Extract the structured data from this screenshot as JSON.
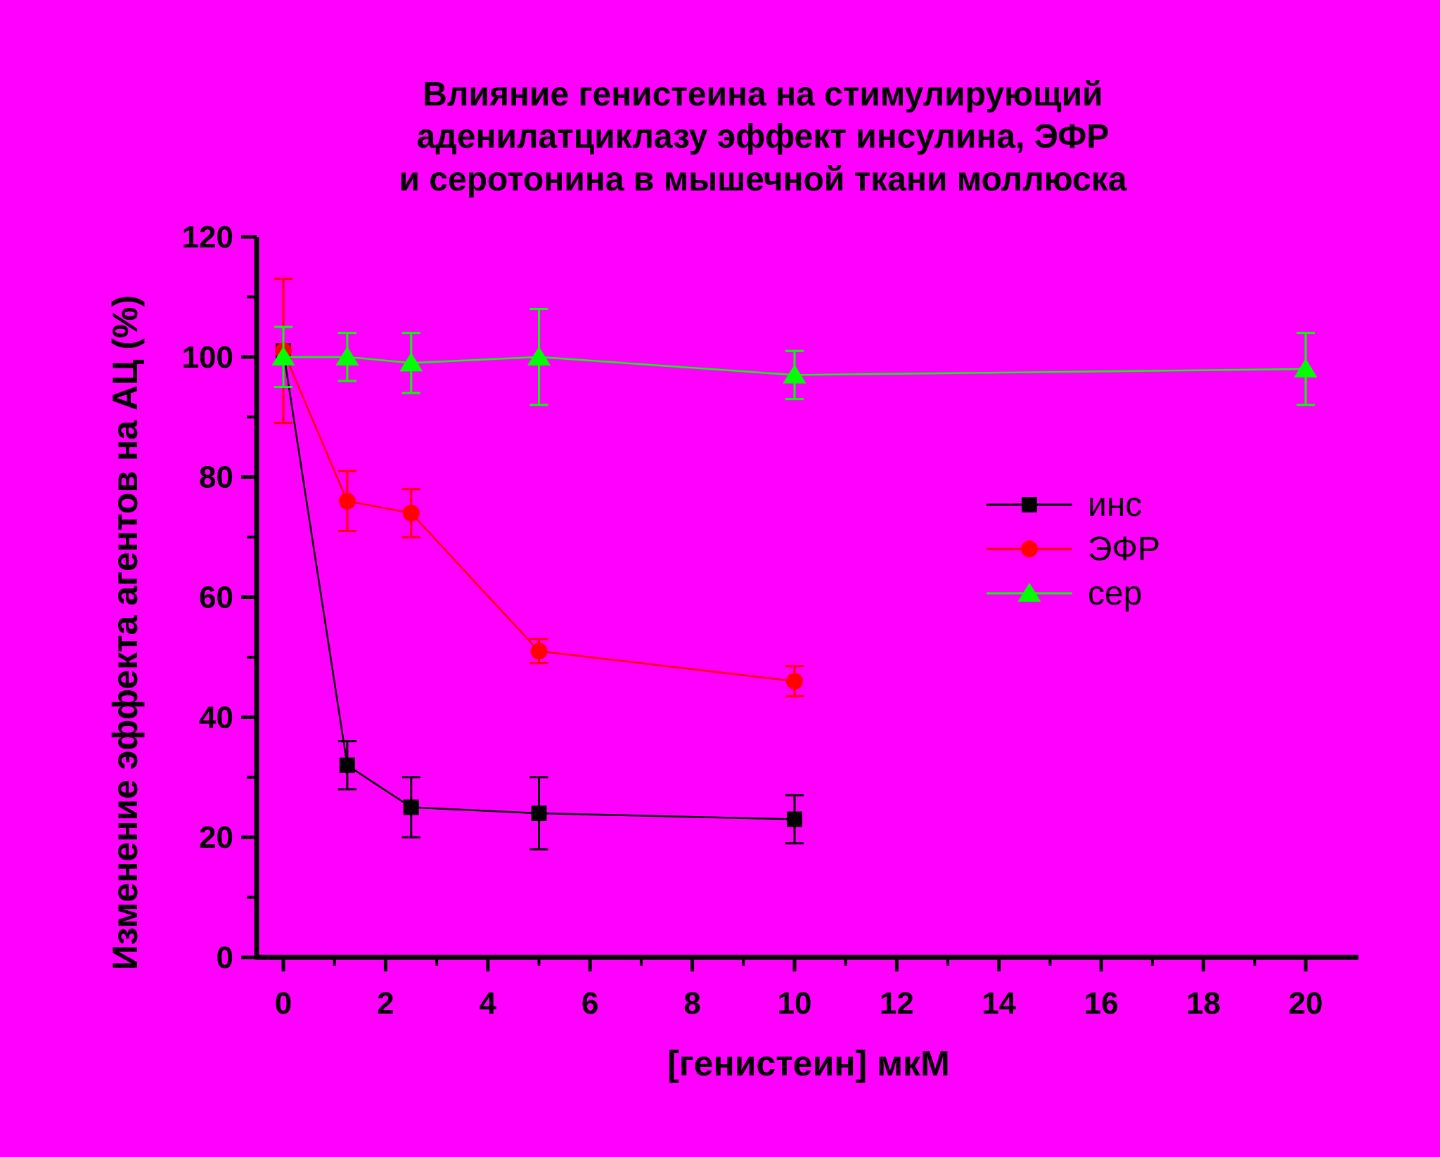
{
  "chart_data": {
    "type": "line",
    "title": [
      "Влияние генистеина на стимулирующий",
      "аденилатциклазу эффект инсулина, ЭФР",
      "и серотонина в мышечной ткани моллюска"
    ],
    "xlabel": "[генистеин] мкМ",
    "ylabel": "Изменение эффекта агентов на АЦ (%)",
    "xlim": [
      -0.5,
      21
    ],
    "ylim": [
      0,
      120
    ],
    "x_ticks": [
      0,
      2,
      4,
      6,
      8,
      10,
      12,
      14,
      16,
      18,
      20
    ],
    "y_ticks": [
      0,
      20,
      40,
      60,
      80,
      100,
      120
    ],
    "grid": false,
    "legend_position": "right-middle",
    "series": [
      {
        "name": "инс",
        "color": "#000000",
        "marker": "square",
        "x": [
          0,
          1.25,
          2.5,
          5,
          10
        ],
        "y": [
          101,
          32,
          25,
          24,
          23
        ],
        "err": [
          0,
          4,
          5,
          6,
          4
        ]
      },
      {
        "name": "ЭФР",
        "color": "#ff0000",
        "marker": "circle",
        "x": [
          0,
          1.25,
          2.5,
          5,
          10
        ],
        "y": [
          101,
          76,
          74,
          51,
          46
        ],
        "err": [
          12,
          5,
          4,
          2,
          2.5
        ]
      },
      {
        "name": "сер",
        "color": "#00ff00",
        "marker": "triangle",
        "x": [
          0,
          1.25,
          2.5,
          5,
          10,
          20
        ],
        "y": [
          100,
          100,
          99,
          100,
          97,
          98
        ],
        "err": [
          5,
          4,
          5,
          8,
          4,
          6
        ]
      }
    ]
  }
}
